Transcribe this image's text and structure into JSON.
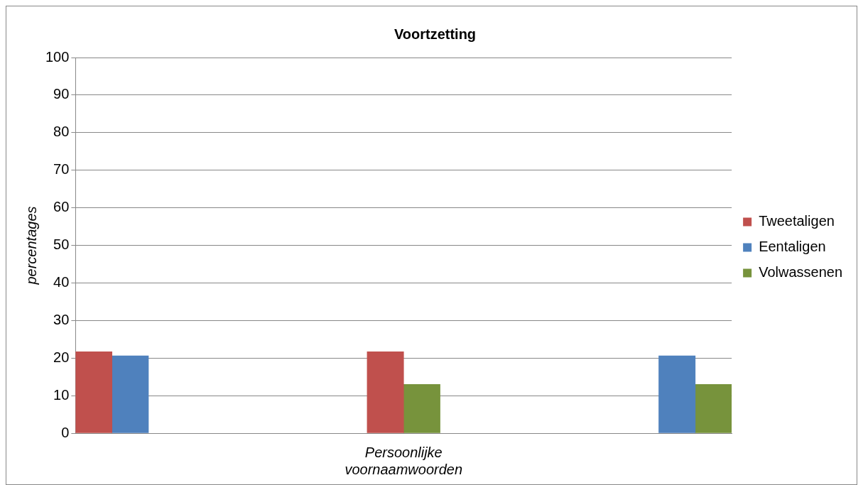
{
  "chart_data": {
    "type": "bar",
    "title": "Voortzetting",
    "xlabel": "Persoonlijke voornaamwoorden",
    "ylabel": "percentages",
    "categories": [
      null,
      null,
      null,
      null,
      null,
      null,
      null,
      null,
      null
    ],
    "series": [
      {
        "name": "Tweetaligen",
        "color": "#c0504d",
        "values": [
          21.7,
          null,
          null,
          null,
          21.7,
          null,
          null,
          null,
          null
        ]
      },
      {
        "name": "Eentaligen",
        "color": "#4f81bd",
        "values": [
          20.6,
          null,
          null,
          null,
          null,
          null,
          null,
          null,
          20.6
        ]
      },
      {
        "name": "Volwassenen",
        "color": "#77933c",
        "values": [
          null,
          null,
          null,
          null,
          13.0,
          null,
          null,
          null,
          13.0
        ]
      }
    ],
    "ylim": [
      0,
      100
    ],
    "yticks": [
      0,
      10,
      20,
      30,
      40,
      50,
      60,
      70,
      80,
      90,
      100
    ],
    "grid": "y",
    "legend": "right"
  }
}
